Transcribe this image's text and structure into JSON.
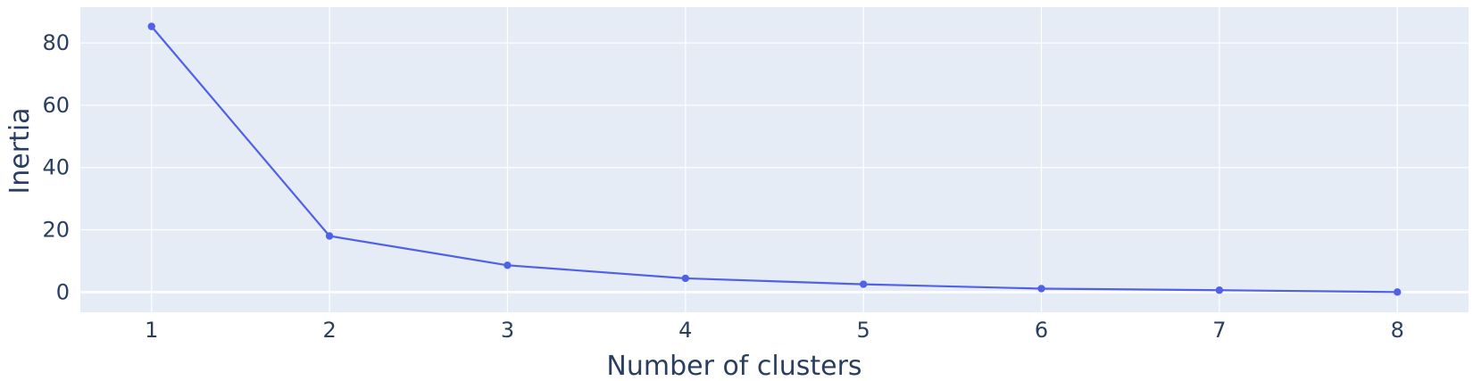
{
  "chart_data": {
    "type": "line",
    "title": "",
    "xlabel": "Number of clusters",
    "ylabel": "Inertia",
    "x": [
      1,
      2,
      3,
      4,
      5,
      6,
      7,
      8
    ],
    "series": [
      {
        "values": [
          85.3,
          18.0,
          8.6,
          4.4,
          2.5,
          1.1,
          0.6,
          0.0
        ]
      }
    ],
    "xticks": [
      1,
      2,
      3,
      4,
      5,
      6,
      7,
      8
    ],
    "yticks": [
      0,
      20,
      40,
      60,
      80
    ],
    "xlim": [
      0.6,
      8.4
    ],
    "ylim": [
      -6.5,
      91.5
    ],
    "grid": true,
    "legend": "none",
    "colors": {
      "line": "#5061e8",
      "marker": "#5061e8",
      "plot_background": "#e5ecf6",
      "grid": "#ffffff",
      "text": "#2a3f5f"
    }
  }
}
